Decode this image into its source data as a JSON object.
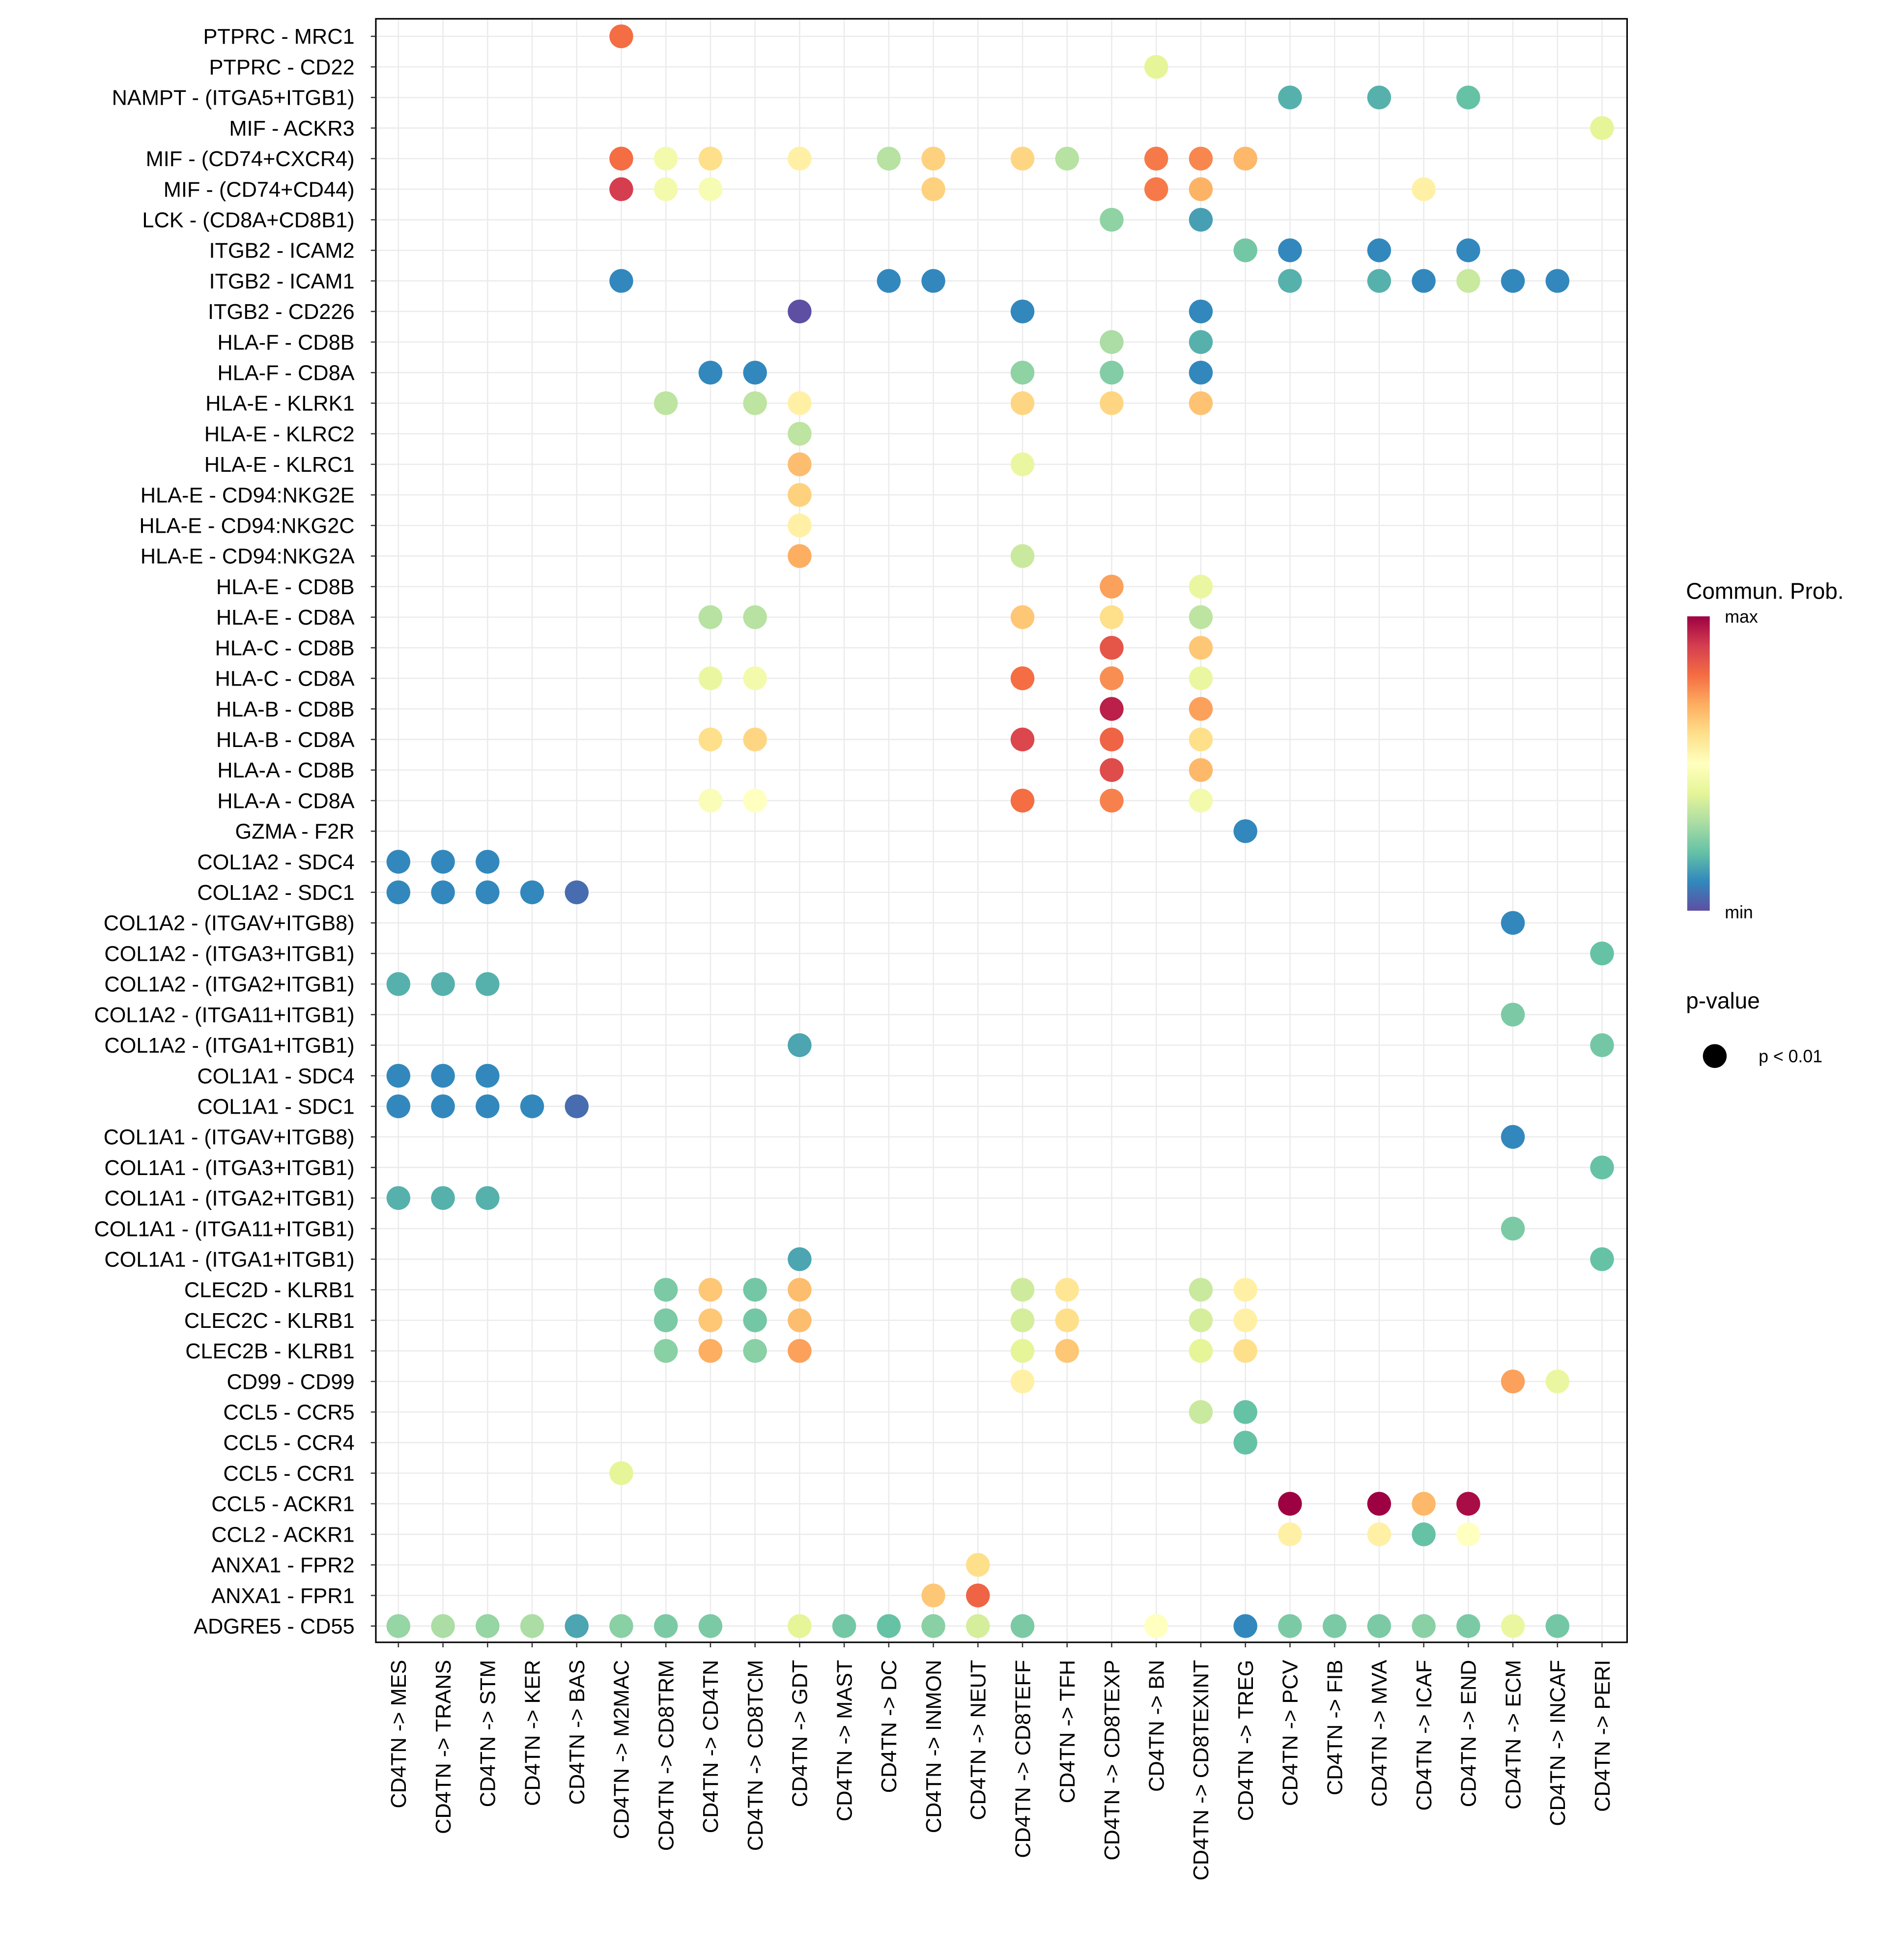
{
  "chart_data": {
    "type": "scatter",
    "subtype": "dot-plot",
    "title": "",
    "xlabel": "",
    "ylabel": "",
    "grid": true,
    "source_prefix": "CD4TN -> ",
    "columns": [
      "MES",
      "TRANS",
      "STM",
      "KER",
      "BAS",
      "M2MAC",
      "CD8TRM",
      "CD4TN",
      "CD8TCM",
      "GDT",
      "MAST",
      "DC",
      "INMON",
      "NEUT",
      "CD8TEFF",
      "TFH",
      "CD8TEXP",
      "BN",
      "CD8TEXINT",
      "TREG",
      "PCV",
      "FIB",
      "MVA",
      "ICAF",
      "END",
      "ECM",
      "INCAF",
      "PERI"
    ],
    "column_labels": [
      "CD4TN -> MES",
      "CD4TN -> TRANS",
      "CD4TN -> STM",
      "CD4TN -> KER",
      "CD4TN -> BAS",
      "CD4TN -> M2MAC",
      "CD4TN -> CD8TRM",
      "CD4TN -> CD4TN",
      "CD4TN -> CD8TCM",
      "CD4TN -> GDT",
      "CD4TN -> MAST",
      "CD4TN -> DC",
      "CD4TN -> INMON",
      "CD4TN -> NEUT",
      "CD4TN -> CD8TEFF",
      "CD4TN -> TFH",
      "CD4TN -> CD8TEXP",
      "CD4TN -> BN",
      "CD4TN -> CD8TEXINT",
      "CD4TN -> TREG",
      "CD4TN -> PCV",
      "CD4TN -> FIB",
      "CD4TN -> MVA",
      "CD4TN -> ICAF",
      "CD4TN -> END",
      "CD4TN -> ECM",
      "CD4TN -> INCAF",
      "CD4TN -> PERI"
    ],
    "value_scale": "relative communication probability (0=min, 1=max)",
    "rows": [
      {
        "label": "PTPRC - MRC1",
        "values": {
          "M2MAC": 0.8
        }
      },
      {
        "label": "PTPRC - CD22",
        "values": {
          "BN": 0.4
        }
      },
      {
        "label": "NAMPT - (ITGA5+ITGB1)",
        "values": {
          "PCV": 0.17,
          "MVA": 0.17,
          "END": 0.2
        }
      },
      {
        "label": "MIF - ACKR3",
        "values": {
          "PERI": 0.4
        }
      },
      {
        "label": "MIF - (CD74+CXCR4)",
        "values": {
          "M2MAC": 0.8,
          "CD8TRM": 0.45,
          "CD4TN": 0.6,
          "GDT": 0.55,
          "DC": 0.32,
          "INMON": 0.63,
          "CD8TEFF": 0.62,
          "TFH": 0.32,
          "BN": 0.78,
          "CD8TEXINT": 0.76,
          "TREG": 0.68
        }
      },
      {
        "label": "MIF - (CD74+CD44)",
        "values": {
          "M2MAC": 0.9,
          "CD8TRM": 0.45,
          "CD4TN": 0.47,
          "INMON": 0.63,
          "BN": 0.78,
          "CD8TEXINT": 0.69,
          "ICAF": 0.55
        }
      },
      {
        "label": "LCK - (CD8A+CD8B1)",
        "values": {
          "CD8TEXP": 0.26,
          "CD8TEXINT": 0.14
        }
      },
      {
        "label": "ITGB2 - ICAM2",
        "values": {
          "TREG": 0.22,
          "PCV": 0.1,
          "MVA": 0.1,
          "END": 0.1
        }
      },
      {
        "label": "ITGB2 - ICAM1",
        "values": {
          "M2MAC": 0.1,
          "DC": 0.1,
          "INMON": 0.1,
          "PCV": 0.17,
          "MVA": 0.17,
          "ICAF": 0.1,
          "END": 0.35,
          "ECM": 0.1,
          "INCAF": 0.1
        }
      },
      {
        "label": "ITGB2 - CD226",
        "values": {
          "GDT": 0.0,
          "CD8TEFF": 0.1,
          "CD8TEXINT": 0.1
        }
      },
      {
        "label": "HLA-F - CD8B",
        "values": {
          "CD8TEXP": 0.3,
          "CD8TEXINT": 0.17
        }
      },
      {
        "label": "HLA-F - CD8A",
        "values": {
          "CD4TN": 0.1,
          "CD8TCM": 0.1,
          "CD8TEFF": 0.26,
          "CD8TEXP": 0.24,
          "CD8TEXINT": 0.1
        }
      },
      {
        "label": "HLA-E - KLRK1",
        "values": {
          "CD8TRM": 0.33,
          "CD8TCM": 0.33,
          "GDT": 0.55,
          "CD8TEFF": 0.62,
          "CD8TEXP": 0.62,
          "CD8TEXINT": 0.66
        }
      },
      {
        "label": "HLA-E - KLRC2",
        "values": {
          "GDT": 0.33
        }
      },
      {
        "label": "HLA-E - KLRC1",
        "values": {
          "GDT": 0.67,
          "CD8TEFF": 0.42
        }
      },
      {
        "label": "HLA-E - CD94:NKG2E",
        "values": {
          "GDT": 0.63
        }
      },
      {
        "label": "HLA-E - CD94:NKG2C",
        "values": {
          "GDT": 0.55
        }
      },
      {
        "label": "HLA-E - CD94:NKG2A",
        "values": {
          "GDT": 0.7,
          "CD8TEFF": 0.35
        }
      },
      {
        "label": "HLA-E - CD8B",
        "values": {
          "CD8TEXP": 0.72,
          "CD8TEXINT": 0.42
        }
      },
      {
        "label": "HLA-E - CD8A",
        "values": {
          "CD4TN": 0.32,
          "CD8TCM": 0.32,
          "CD8TEFF": 0.65,
          "CD8TEXP": 0.6,
          "CD8TEXINT": 0.33
        }
      },
      {
        "label": "HLA-C - CD8B",
        "values": {
          "CD8TEXP": 0.85,
          "CD8TEXINT": 0.65
        }
      },
      {
        "label": "HLA-C - CD8A",
        "values": {
          "CD4TN": 0.42,
          "CD8TCM": 0.45,
          "CD8TEFF": 0.8,
          "CD8TEXP": 0.75,
          "CD8TEXINT": 0.42
        }
      },
      {
        "label": "HLA-B - CD8B",
        "values": {
          "CD8TEXP": 0.95,
          "CD8TEXINT": 0.72
        }
      },
      {
        "label": "HLA-B - CD8A",
        "values": {
          "CD4TN": 0.6,
          "CD8TCM": 0.62,
          "CD8TEFF": 0.88,
          "CD8TEXP": 0.82,
          "CD8TEXINT": 0.6
        }
      },
      {
        "label": "HLA-A - CD8B",
        "values": {
          "CD8TEXP": 0.87,
          "CD8TEXINT": 0.68
        }
      },
      {
        "label": "HLA-A - CD8A",
        "values": {
          "CD4TN": 0.48,
          "CD8TCM": 0.5,
          "CD8TEFF": 0.8,
          "CD8TEXP": 0.77,
          "CD8TEXINT": 0.45
        }
      },
      {
        "label": "GZMA - F2R",
        "values": {
          "TREG": 0.1
        }
      },
      {
        "label": "COL1A2 - SDC4",
        "values": {
          "MES": 0.1,
          "TRANS": 0.1,
          "STM": 0.1
        }
      },
      {
        "label": "COL1A2 - SDC1",
        "values": {
          "MES": 0.1,
          "TRANS": 0.1,
          "STM": 0.1,
          "KER": 0.1,
          "BAS": 0.05
        }
      },
      {
        "label": "COL1A2 - (ITGAV+ITGB8)",
        "values": {
          "ECM": 0.1
        }
      },
      {
        "label": "COL1A2 - (ITGA3+ITGB1)",
        "values": {
          "PERI": 0.2
        }
      },
      {
        "label": "COL1A2 - (ITGA2+ITGB1)",
        "values": {
          "MES": 0.17,
          "TRANS": 0.17,
          "STM": 0.17
        }
      },
      {
        "label": "COL1A2 - (ITGA11+ITGB1)",
        "values": {
          "ECM": 0.23
        }
      },
      {
        "label": "COL1A2 - (ITGA1+ITGB1)",
        "values": {
          "GDT": 0.15,
          "PERI": 0.22
        }
      },
      {
        "label": "COL1A1 - SDC4",
        "values": {
          "MES": 0.1,
          "TRANS": 0.1,
          "STM": 0.1
        }
      },
      {
        "label": "COL1A1 - SDC1",
        "values": {
          "MES": 0.1,
          "TRANS": 0.1,
          "STM": 0.1,
          "KER": 0.1,
          "BAS": 0.05
        }
      },
      {
        "label": "COL1A1 - (ITGAV+ITGB8)",
        "values": {
          "ECM": 0.1
        }
      },
      {
        "label": "COL1A1 - (ITGA3+ITGB1)",
        "values": {
          "PERI": 0.2
        }
      },
      {
        "label": "COL1A1 - (ITGA2+ITGB1)",
        "values": {
          "MES": 0.17,
          "TRANS": 0.17,
          "STM": 0.17
        }
      },
      {
        "label": "COL1A1 - (ITGA11+ITGB1)",
        "values": {
          "ECM": 0.23
        }
      },
      {
        "label": "COL1A1 - (ITGA1+ITGB1)",
        "values": {
          "GDT": 0.15,
          "PERI": 0.2
        }
      },
      {
        "label": "CLEC2D - KLRB1",
        "values": {
          "CD8TRM": 0.23,
          "CD4TN": 0.65,
          "CD8TCM": 0.22,
          "GDT": 0.67,
          "CD8TEFF": 0.36,
          "TFH": 0.58,
          "CD8TEXINT": 0.35,
          "TREG": 0.55
        }
      },
      {
        "label": "CLEC2C - KLRB1",
        "values": {
          "CD8TRM": 0.23,
          "CD4TN": 0.65,
          "CD8TCM": 0.22,
          "GDT": 0.67,
          "CD8TEFF": 0.37,
          "TFH": 0.6,
          "CD8TEXINT": 0.37,
          "TREG": 0.55
        }
      },
      {
        "label": "CLEC2B - KLRB1",
        "values": {
          "CD8TRM": 0.25,
          "CD4TN": 0.7,
          "CD8TCM": 0.25,
          "GDT": 0.72,
          "CD8TEFF": 0.4,
          "TFH": 0.65,
          "CD8TEXINT": 0.4,
          "TREG": 0.6
        }
      },
      {
        "label": "CD99 - CD99",
        "values": {
          "CD8TEFF": 0.55,
          "ECM": 0.72,
          "INCAF": 0.42
        }
      },
      {
        "label": "CCL5 - CCR5",
        "values": {
          "CD8TEXINT": 0.35,
          "TREG": 0.2
        }
      },
      {
        "label": "CCL5 - CCR4",
        "values": {
          "TREG": 0.2
        }
      },
      {
        "label": "CCL5 - CCR1",
        "values": {
          "M2MAC": 0.4
        }
      },
      {
        "label": "CCL5 - ACKR1",
        "values": {
          "PCV": 1.0,
          "MVA": 1.0,
          "ICAF": 0.68,
          "END": 0.98
        }
      },
      {
        "label": "CCL2 - ACKR1",
        "values": {
          "PCV": 0.55,
          "MVA": 0.55,
          "ICAF": 0.2,
          "END": 0.5
        }
      },
      {
        "label": "ANXA1 - FPR2",
        "values": {
          "NEUT": 0.6
        }
      },
      {
        "label": "ANXA1 - FPR1",
        "values": {
          "INMON": 0.65,
          "NEUT": 0.82
        }
      },
      {
        "label": "ADGRE5 - CD55",
        "values": {
          "MES": 0.27,
          "TRANS": 0.3,
          "STM": 0.27,
          "KER": 0.3,
          "BAS": 0.15,
          "M2MAC": 0.25,
          "CD8TRM": 0.23,
          "CD4TN": 0.23,
          "GDT": 0.4,
          "MAST": 0.22,
          "DC": 0.2,
          "INMON": 0.25,
          "NEUT": 0.37,
          "CD8TEFF": 0.23,
          "BN": 0.5,
          "TREG": 0.1,
          "PCV": 0.23,
          "FIB": 0.23,
          "MVA": 0.23,
          "ICAF": 0.25,
          "END": 0.23,
          "ECM": 0.42,
          "INCAF": 0.22
        }
      }
    ],
    "colorbar": {
      "title": "Commun. Prob.",
      "max_label": "max",
      "min_label": "min",
      "colors": [
        "#5E4FA2",
        "#3288BD",
        "#66C2A5",
        "#ABDDA4",
        "#E6F598",
        "#FFFFBF",
        "#FEE08B",
        "#FDAE61",
        "#F46D43",
        "#D53E4F",
        "#9E0142"
      ]
    },
    "size_legend": {
      "title": "p-value",
      "entries": [
        "p < 0.01"
      ]
    },
    "legend_placement": "right"
  }
}
